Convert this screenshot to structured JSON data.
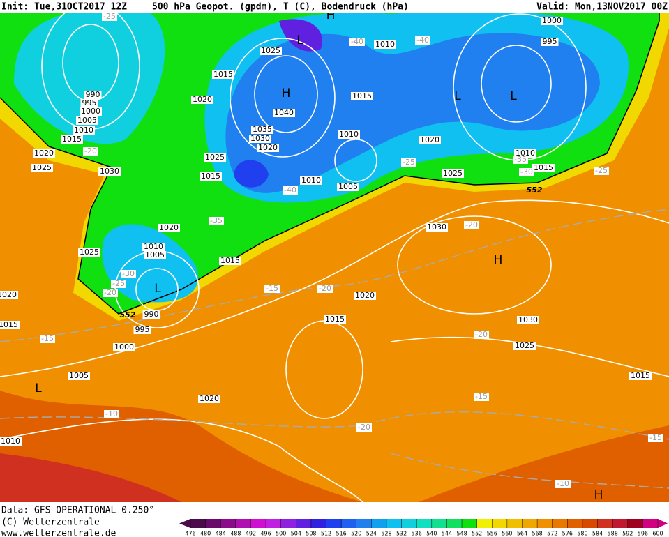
{
  "header": {
    "init": "Init: Tue,31OCT2017 12Z",
    "title": "500 hPa Geopot. (gpdm), T (C), Bodendruck (hPa)",
    "valid": "Valid: Mon,13NOV2017 00Z"
  },
  "map": {
    "pressure_labels": [
      "1025",
      "1015",
      "1020",
      "990",
      "995",
      "1000",
      "1005",
      "1010",
      "1015",
      "1020",
      "1025",
      "1030",
      "1040",
      "1035",
      "1030",
      "1020",
      "1025",
      "1015",
      "1010",
      "1005",
      "1010",
      "1015",
      "1010",
      "1000",
      "995",
      "1020",
      "1010",
      "1015",
      "1025",
      "1030",
      "1020",
      "1010",
      "1005",
      "1015",
      "1025",
      "990",
      "995",
      "1000",
      "1005",
      "1020",
      "1010",
      "1015",
      "1020",
      "1020",
      "1015",
      "1030",
      "1025",
      "1015"
    ],
    "temperature_labels": [
      "-25",
      "-20",
      "-40",
      "-40",
      "-40",
      "-35",
      "-35",
      "-30",
      "-25",
      "-25",
      "-20",
      "-30",
      "-25",
      "-20",
      "-15",
      "-20",
      "-15",
      "-10",
      "-20",
      "-15",
      "-20",
      "-15",
      "-10"
    ],
    "centers": [
      "H",
      "L",
      "H",
      "L",
      "L",
      "L",
      "L",
      "H",
      "H"
    ],
    "contour_labels": [
      "552",
      "552"
    ]
  },
  "footer": {
    "data": "Data: GFS OPERATIONAL 0.250°",
    "copyright": "(C) Wetterzentrale",
    "url": "www.wetterzentrale.de"
  },
  "colorbar": {
    "ticks": [
      476,
      480,
      484,
      488,
      492,
      496,
      500,
      504,
      508,
      512,
      516,
      520,
      524,
      528,
      532,
      536,
      540,
      544,
      548,
      552,
      556,
      560,
      564,
      568,
      572,
      576,
      580,
      584,
      588,
      592,
      596,
      600
    ],
    "colors": [
      "#4b0b4b",
      "#6a0a6a",
      "#8b0b8b",
      "#b010b0",
      "#d010d0",
      "#c020e0",
      "#9020e0",
      "#6020e0",
      "#3020e0",
      "#2040f0",
      "#2060f0",
      "#2080f0",
      "#10a0f0",
      "#10c0f0",
      "#10d0e0",
      "#10e0c0",
      "#10e090",
      "#10e060",
      "#10e010",
      "#f0f000",
      "#f0d800",
      "#f0c000",
      "#f0a800",
      "#f09000",
      "#e87800",
      "#e06000",
      "#d84800",
      "#d03020",
      "#c01830",
      "#a00020",
      "#d00080"
    ]
  }
}
